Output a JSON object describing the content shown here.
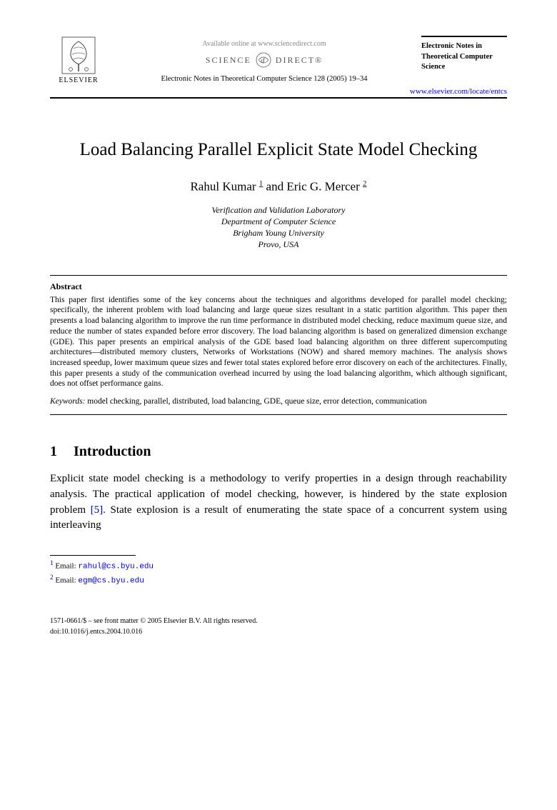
{
  "header": {
    "available_text": "Available online at www.sciencedirect.com",
    "sciencedirect_left": "SCIENCE",
    "sciencedirect_right": "DIRECT®",
    "journal_reference": "Electronic Notes in Theoretical Computer Science 128 (2005) 19–34",
    "publisher_name": "ELSEVIER",
    "journal_name_sidebar": "Electronic Notes in Theoretical Computer Science",
    "locate_url": "www.elsevier.com/locate/entcs"
  },
  "title": "Load Balancing Parallel Explicit State Model Checking",
  "authors": {
    "a1_name": "Rahul Kumar",
    "a1_note": "1",
    "conj": " and ",
    "a2_name": "Eric G. Mercer",
    "a2_note": "2"
  },
  "affiliation": {
    "l1": "Verification and Validation Laboratory",
    "l2": "Department of Computer Science",
    "l3": "Brigham Young University",
    "l4": "Provo, USA"
  },
  "abstract": {
    "heading": "Abstract",
    "text": "This paper first identifies some of the key concerns about the techniques and algorithms developed for parallel model checking; specifically, the inherent problem with load balancing and large queue sizes resultant in a static partition algorithm. This paper then presents a load balancing algorithm to improve the run time performance in distributed model checking, reduce maximum queue size, and reduce the number of states expanded before error discovery. The load balancing algorithm is based on generalized dimension exchange (GDE). This paper presents an empirical analysis of the GDE based load balancing algorithm on three different supercomputing architectures—distributed memory clusters, Networks of Workstations (NOW) and shared memory machines. The analysis shows increased speedup, lower maximum queue sizes and fewer total states explored before error discovery on each of the architectures. Finally, this paper presents a study of the communication overhead incurred by using the load balancing algorithm, which although significant, does not offset performance gains."
  },
  "keywords": {
    "label": "Keywords:",
    "text": "  model checking, parallel, distributed, load balancing, GDE, queue size, error detection, communication"
  },
  "section1": {
    "num": "1",
    "heading": "Introduction",
    "para": "Explicit state model checking is a methodology to verify properties in a design through reachability analysis. The practical application of model checking, however, is hindered by the state explosion problem [5]. State explosion is a result of enumerating the state space of a concurrent system using interleaving",
    "cite": "[5]"
  },
  "footnotes": {
    "f1_num": "1",
    "f1_label": " Email: ",
    "f1_email": "rahul@cs.byu.edu",
    "f2_num": "2",
    "f2_label": " Email: ",
    "f2_email": "egm@cs.byu.edu"
  },
  "footer": {
    "line1": "1571-0661/$ – see front matter © 2005 Elsevier B.V. All rights reserved.",
    "line2": "doi:10.1016/j.entcs.2004.10.016"
  },
  "colors": {
    "link": "#0000cc",
    "text": "#000000",
    "muted": "#888888"
  }
}
